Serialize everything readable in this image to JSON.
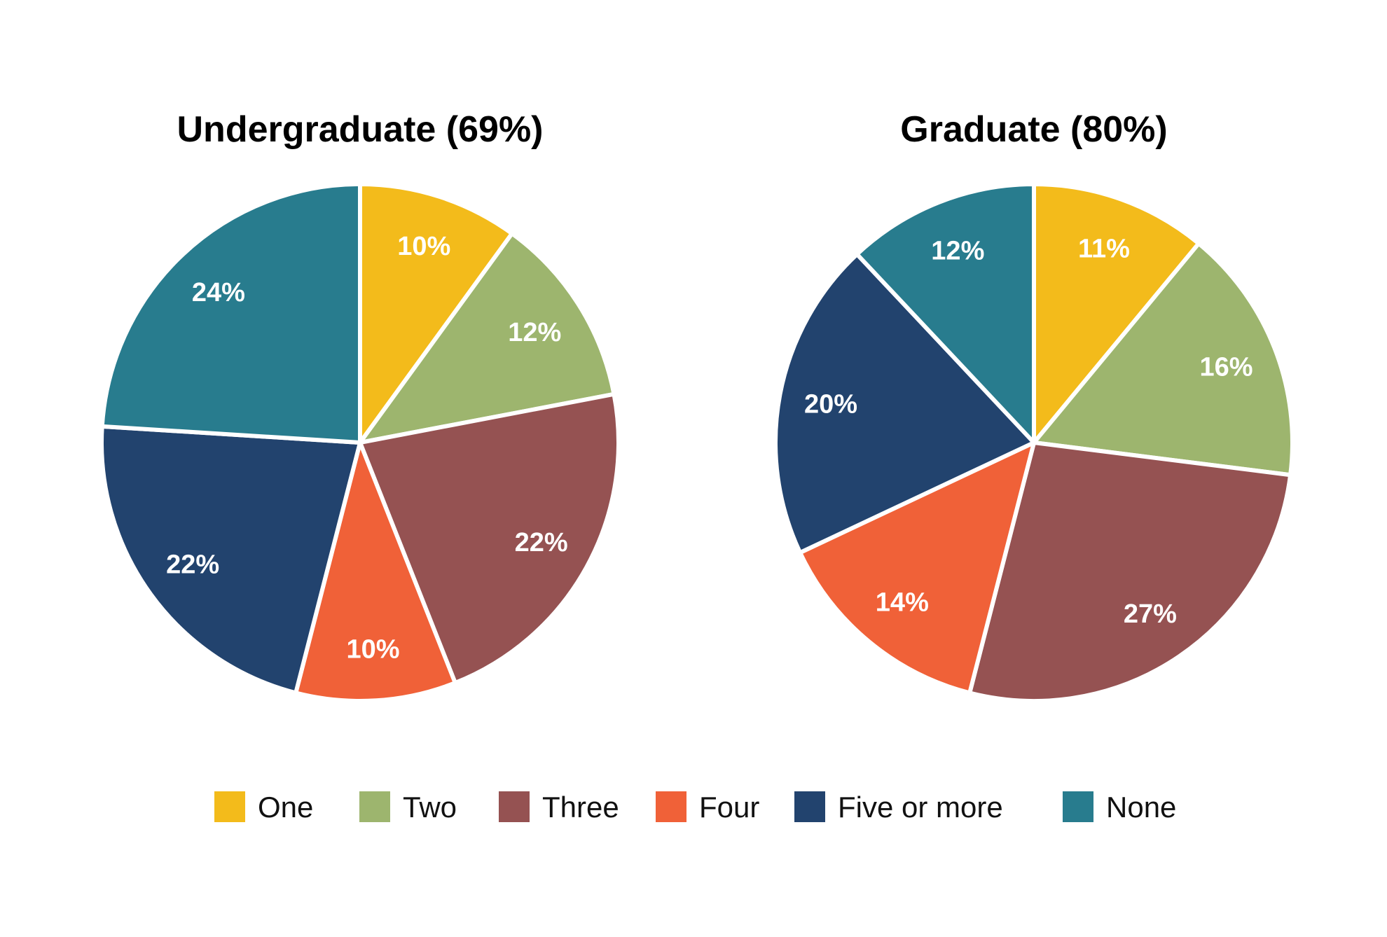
{
  "chart_data": {
    "type": "pie",
    "categories": [
      "One",
      "Two",
      "Three",
      "Four",
      "Five or more",
      "None"
    ],
    "colors": [
      "#F3BB1B",
      "#9DB56E",
      "#955252",
      "#F06138",
      "#22436E",
      "#287C8E"
    ],
    "legend_position": "bottom",
    "charts": [
      {
        "title": "Undergraduate (69%)",
        "values": [
          10,
          12,
          22,
          10,
          22,
          24
        ],
        "labels": [
          "10%",
          "12%",
          "22%",
          "10%",
          "22%",
          "24%"
        ]
      },
      {
        "title": "Graduate (80%)",
        "values": [
          11,
          16,
          27,
          14,
          20,
          12
        ],
        "labels": [
          "11%",
          "16%",
          "27%",
          "14%",
          "20%",
          "12%"
        ]
      }
    ]
  }
}
